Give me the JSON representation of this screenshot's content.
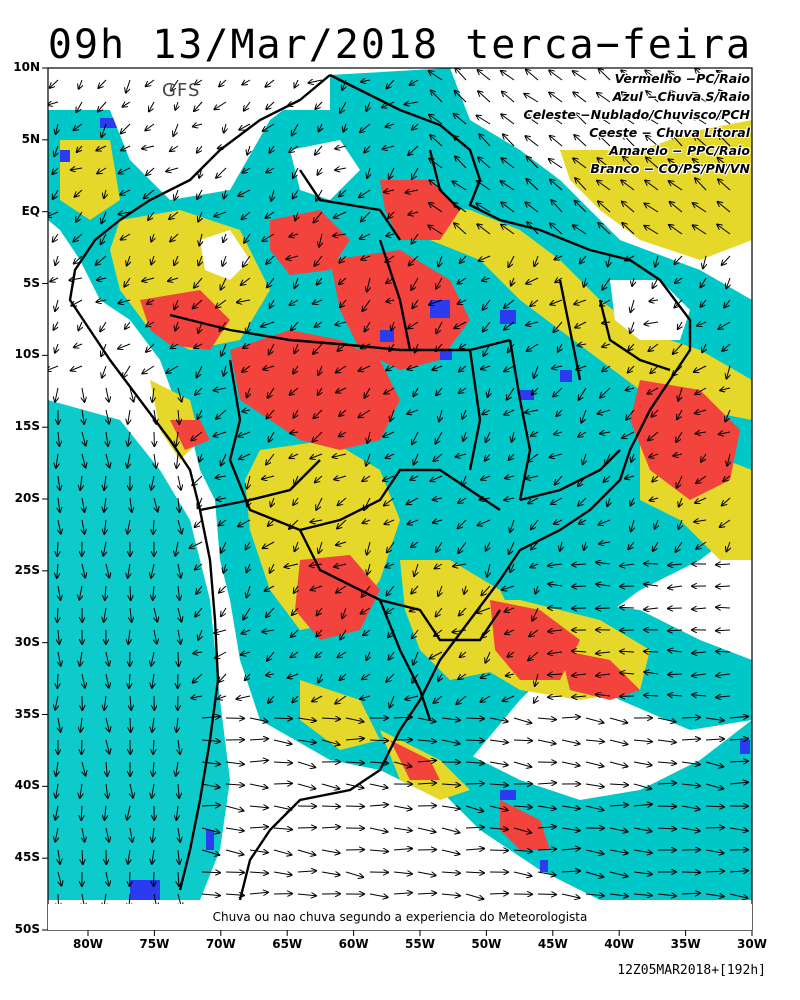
{
  "title": "09h 13/Mar/2018 terca−feira",
  "model_label": "GFS",
  "legend": [
    "Vermelho −PC/Raio",
    "Azul −Chuva S/Raio",
    "Celeste −Nublado/Chuvisco/PCH",
    "Ceeste − Chuva Litoral",
    "Amarelo − PPC/Raio",
    "Branco − CO/PS/PN/VN"
  ],
  "footnote": "Chuva ou nao chuva segundo a experiencia do Meteorologista",
  "run_info": "12Z05MAR2018+[192h]",
  "lat_labels": [
    "10N",
    "5N",
    "EQ",
    "5S",
    "10S",
    "15S",
    "20S",
    "25S",
    "30S",
    "35S",
    "40S",
    "45S",
    "50S"
  ],
  "lon_labels": [
    "80W",
    "75W",
    "70W",
    "65W",
    "60W",
    "55W",
    "50W",
    "45W",
    "40W",
    "35W",
    "30W"
  ],
  "colors": {
    "red": "#f2433d",
    "blue": "#2b3cf0",
    "cyan": "#00c8c8",
    "yellow": "#e6d82a",
    "white": "#ffffff"
  }
}
